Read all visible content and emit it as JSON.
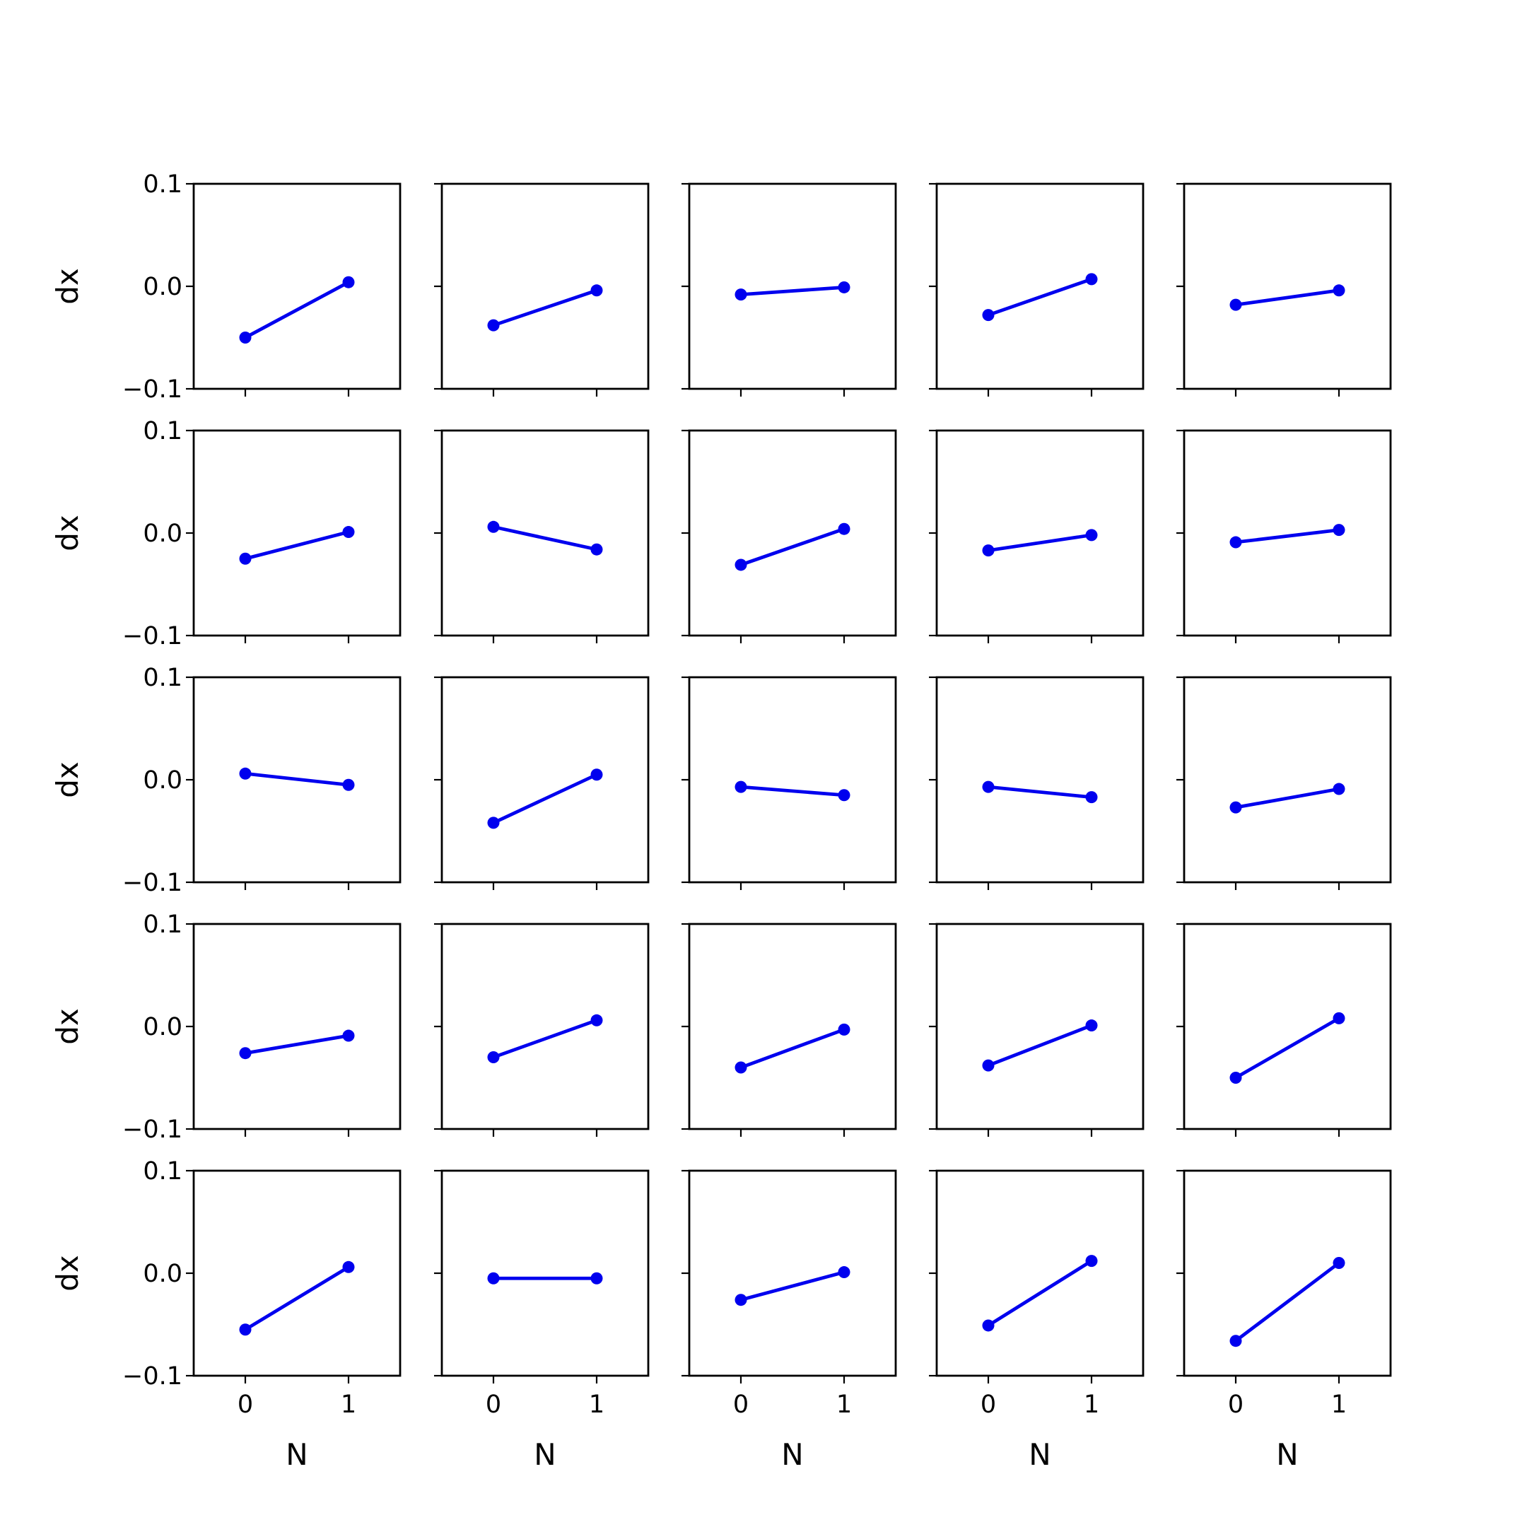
{
  "colors": {
    "series": "#0000ee"
  },
  "chart_data": {
    "type": "line",
    "layout": {
      "rows": 5,
      "cols": 5
    },
    "x": [
      0,
      1
    ],
    "xlim": [
      -0.5,
      1.5
    ],
    "ylim": [
      -0.1,
      0.1
    ],
    "xticks": [
      0,
      1
    ],
    "xtick_labels": [
      "0",
      "1"
    ],
    "yticks": [
      -0.1,
      0.0,
      0.1
    ],
    "ytick_labels": [
      "−0.1",
      "0.0",
      "0.1"
    ],
    "xlabel": "N",
    "ylabel": "dx",
    "grid": false,
    "markers": true,
    "panels": [
      {
        "values": [
          -0.05,
          0.004
        ]
      },
      {
        "values": [
          -0.038,
          -0.004
        ]
      },
      {
        "values": [
          -0.008,
          -0.001
        ]
      },
      {
        "values": [
          -0.028,
          0.007
        ]
      },
      {
        "values": [
          -0.018,
          -0.004
        ]
      },
      {
        "values": [
          -0.025,
          0.001
        ]
      },
      {
        "values": [
          0.006,
          -0.016
        ]
      },
      {
        "values": [
          -0.031,
          0.004
        ]
      },
      {
        "values": [
          -0.017,
          -0.002
        ]
      },
      {
        "values": [
          -0.009,
          0.003
        ]
      },
      {
        "values": [
          0.006,
          -0.005
        ]
      },
      {
        "values": [
          -0.042,
          0.005
        ]
      },
      {
        "values": [
          -0.007,
          -0.015
        ]
      },
      {
        "values": [
          -0.007,
          -0.017
        ]
      },
      {
        "values": [
          -0.027,
          -0.009
        ]
      },
      {
        "values": [
          -0.026,
          -0.009
        ]
      },
      {
        "values": [
          -0.03,
          0.006
        ]
      },
      {
        "values": [
          -0.04,
          -0.003
        ]
      },
      {
        "values": [
          -0.038,
          0.001
        ]
      },
      {
        "values": [
          -0.05,
          0.008
        ]
      },
      {
        "values": [
          -0.055,
          0.006
        ]
      },
      {
        "values": [
          -0.005,
          -0.005
        ]
      },
      {
        "values": [
          -0.026,
          0.001
        ]
      },
      {
        "values": [
          -0.051,
          0.012
        ]
      },
      {
        "values": [
          -0.066,
          0.01
        ]
      }
    ]
  }
}
